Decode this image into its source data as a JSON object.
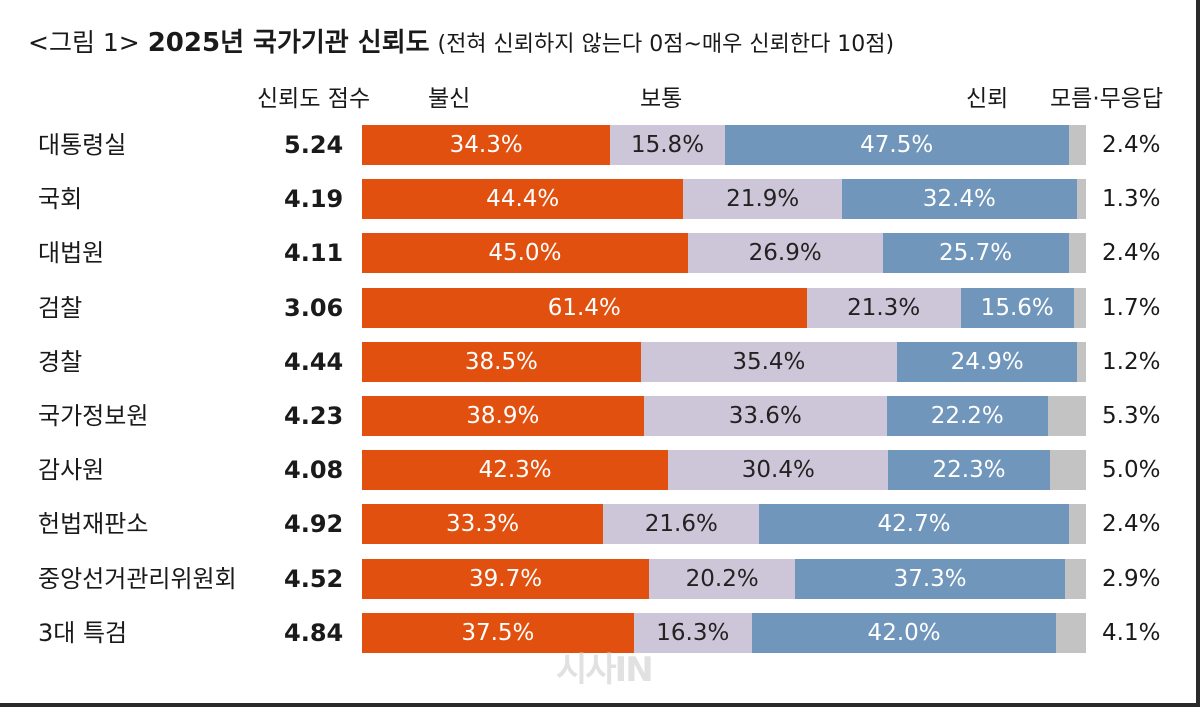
{
  "chart_data": {
    "type": "bar",
    "stacked": true,
    "orientation": "horizontal",
    "title_prefix": "<그림 1>",
    "title": "2025년 국가기관 신뢰도",
    "subtitle": "(전혀 신뢰하지 않는다 0점~매우 신뢰한다 10점)",
    "score_header": "신뢰도 점수",
    "categories": [
      "대통령실",
      "국회",
      "대법원",
      "검찰",
      "경찰",
      "국가정보원",
      "감사원",
      "헌법재판소",
      "중앙선거관리위원회",
      "3대 특검"
    ],
    "scores": [
      "5.24",
      "4.19",
      "4.11",
      "3.06",
      "4.44",
      "4.23",
      "4.08",
      "4.92",
      "4.52",
      "4.84"
    ],
    "series": [
      {
        "name": "불신",
        "color": "#e2500f",
        "values": [
          34.3,
          44.4,
          45.0,
          61.4,
          38.5,
          38.9,
          42.3,
          33.3,
          39.7,
          37.5
        ],
        "labels": [
          "34.3%",
          "44.4%",
          "45.0%",
          "61.4%",
          "38.5%",
          "38.9%",
          "42.3%",
          "33.3%",
          "39.7%",
          "37.5%"
        ]
      },
      {
        "name": "보통",
        "color": "#cdc6d8",
        "values": [
          15.8,
          21.9,
          26.9,
          21.3,
          35.4,
          33.6,
          30.4,
          21.6,
          20.2,
          16.3
        ],
        "labels": [
          "15.8%",
          "21.9%",
          "26.9%",
          "21.3%",
          "35.4%",
          "33.6%",
          "30.4%",
          "21.6%",
          "20.2%",
          "16.3%"
        ]
      },
      {
        "name": "신뢰",
        "color": "#7196bb",
        "values": [
          47.5,
          32.4,
          25.7,
          15.6,
          24.9,
          22.2,
          22.3,
          42.7,
          37.3,
          42.0
        ],
        "labels": [
          "47.5%",
          "32.4%",
          "25.7%",
          "15.6%",
          "24.9%",
          "22.2%",
          "22.3%",
          "42.7%",
          "37.3%",
          "42.0%"
        ]
      },
      {
        "name": "모름·무응답",
        "color": "#c3c3c3",
        "values": [
          2.4,
          1.3,
          2.4,
          1.7,
          1.2,
          5.3,
          5.0,
          2.4,
          2.9,
          4.1
        ],
        "labels": [
          "2.4%",
          "1.3%",
          "2.4%",
          "1.7%",
          "1.2%",
          "5.3%",
          "5.0%",
          "2.4%",
          "2.9%",
          "4.1%"
        ]
      }
    ],
    "xlim": [
      0,
      100
    ],
    "watermark": "시사IN"
  }
}
